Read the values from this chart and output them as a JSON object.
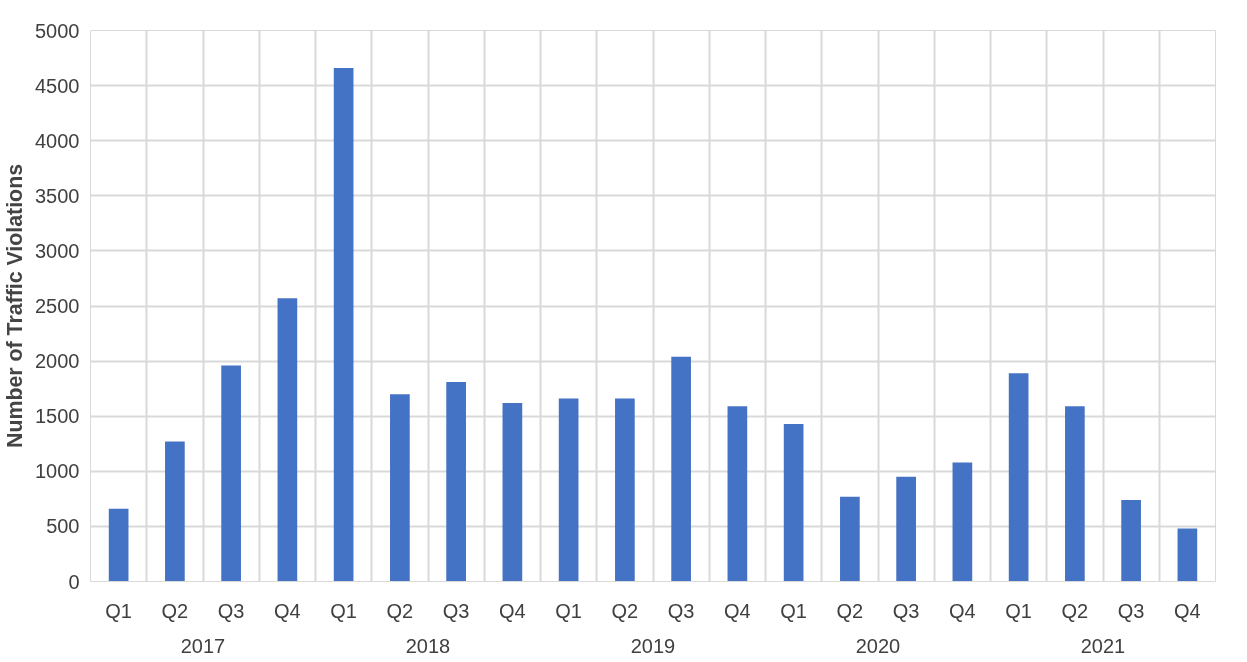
{
  "chart_data": {
    "type": "bar",
    "ylabel": "Number of Traffic Violations",
    "categories": [
      "Q1",
      "Q2",
      "Q3",
      "Q4",
      "Q1",
      "Q2",
      "Q3",
      "Q4",
      "Q1",
      "Q2",
      "Q3",
      "Q4",
      "Q1",
      "Q2",
      "Q3",
      "Q4",
      "Q1",
      "Q2",
      "Q3",
      "Q4"
    ],
    "annotations": [
      "2017",
      "2018",
      "2019",
      "2020",
      "2021"
    ],
    "values": [
      660,
      1270,
      1960,
      2570,
      4660,
      1700,
      1810,
      1620,
      1660,
      1660,
      2040,
      1590,
      1430,
      770,
      950,
      1080,
      1890,
      1590,
      740,
      480
    ],
    "color": "#4472c4",
    "ylim": [
      0,
      5000
    ],
    "yticks": [
      0,
      500,
      1000,
      1500,
      2000,
      2500,
      3000,
      3500,
      4000,
      4500,
      5000
    ],
    "grid": true
  }
}
